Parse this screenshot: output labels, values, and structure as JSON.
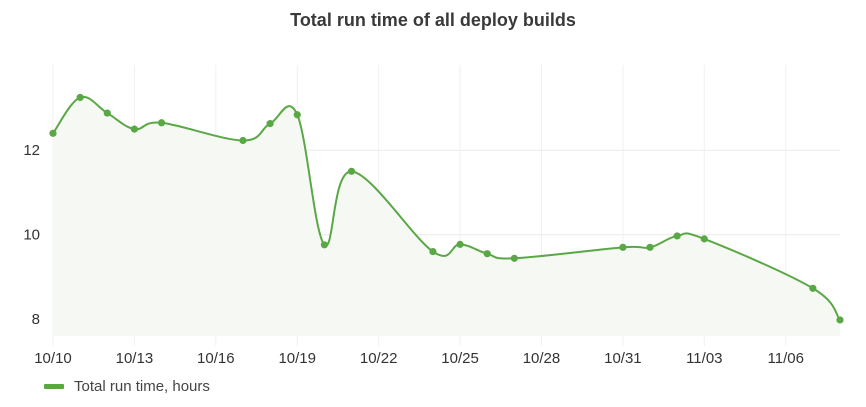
{
  "chart_data": {
    "type": "line",
    "title": "Total run time of all deploy builds",
    "x_ticks": [
      "10/10",
      "10/13",
      "10/16",
      "10/19",
      "10/22",
      "10/25",
      "10/28",
      "10/31",
      "11/03",
      "11/06"
    ],
    "y_ticks": [
      "8",
      "10",
      "12"
    ],
    "ylim": [
      7.6,
      13.9
    ],
    "xlim": [
      "10/10",
      "11/08"
    ],
    "grid": true,
    "legend": "bottom-left",
    "series": [
      {
        "name": "Total run time, hours",
        "color": "#5aa845",
        "points": [
          {
            "x": "10/10",
            "y": 12.4
          },
          {
            "x": "10/11",
            "y": 13.25
          },
          {
            "x": "10/12",
            "y": 12.88
          },
          {
            "x": "10/13",
            "y": 12.5
          },
          {
            "x": "10/14",
            "y": 12.65
          },
          {
            "x": "10/17",
            "y": 12.23
          },
          {
            "x": "10/18",
            "y": 12.63
          },
          {
            "x": "10/19",
            "y": 12.84
          },
          {
            "x": "10/20",
            "y": 9.76
          },
          {
            "x": "10/21",
            "y": 11.5
          },
          {
            "x": "10/24",
            "y": 9.6
          },
          {
            "x": "10/25",
            "y": 9.77
          },
          {
            "x": "10/26",
            "y": 9.55
          },
          {
            "x": "10/27",
            "y": 9.44
          },
          {
            "x": "10/31",
            "y": 9.7
          },
          {
            "x": "11/01",
            "y": 9.7
          },
          {
            "x": "11/02",
            "y": 9.97
          },
          {
            "x": "11/03",
            "y": 9.9
          },
          {
            "x": "11/07",
            "y": 8.73
          },
          {
            "x": "11/08",
            "y": 7.98
          }
        ]
      }
    ]
  }
}
